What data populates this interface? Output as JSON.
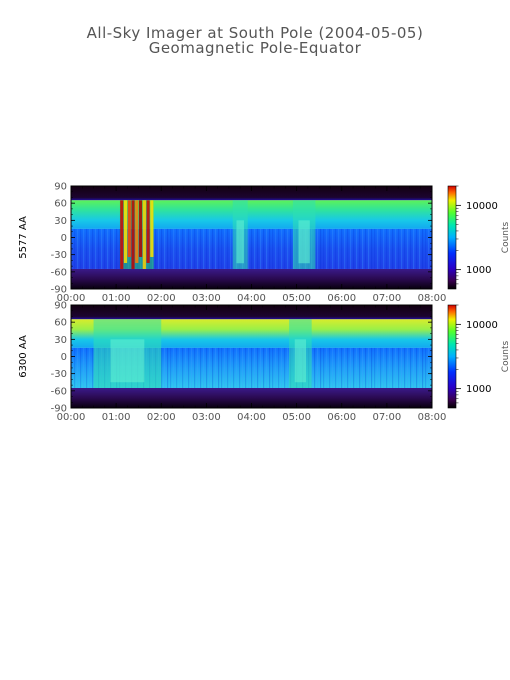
{
  "figure": {
    "title": "All-Sky Imager at South Pole (2004-05-05)",
    "subtitle": "Geomagnetic Pole-Equator"
  },
  "chart_data": [
    {
      "type": "heatmap",
      "ylabel": "5577 AA",
      "x_tick_labels": [
        "00:00",
        "01:00",
        "02:00",
        "03:00",
        "04:00",
        "05:00",
        "06:00",
        "07:00",
        "08:00"
      ],
      "xlim": [
        "00:00",
        "08:00"
      ],
      "y_ticks": [
        90,
        60,
        30,
        0,
        -30,
        -60,
        -90
      ],
      "ylim": [
        -90,
        90
      ],
      "colorbar": {
        "title": "Counts",
        "tick_labels": [
          "10000",
          "1000"
        ],
        "tick_values": [
          10000,
          1000
        ],
        "scale": "log",
        "range": [
          500,
          20000
        ]
      },
      "bands_deg": {
        "top_dark": [
          65,
          90
        ],
        "upper_green": [
          15,
          65
        ],
        "lower_blue": [
          -55,
          15
        ],
        "bottom_purple": [
          -90,
          -55
        ]
      },
      "intensity_events": [
        {
          "start": "01:05",
          "end": "01:50",
          "peak_counts": 20000
        },
        {
          "start": "03:35",
          "end": "03:55",
          "peak_counts": 6000
        },
        {
          "start": "04:55",
          "end": "05:25",
          "peak_counts": 5000
        }
      ]
    },
    {
      "type": "heatmap",
      "ylabel": "6300 AA",
      "x_tick_labels": [
        "00:00",
        "01:00",
        "02:00",
        "03:00",
        "04:00",
        "05:00",
        "06:00",
        "07:00",
        "08:00"
      ],
      "xlim": [
        "00:00",
        "08:00"
      ],
      "y_ticks": [
        90,
        60,
        30,
        0,
        -30,
        -60,
        -90
      ],
      "ylim": [
        -90,
        90
      ],
      "colorbar": {
        "title": "Counts",
        "tick_labels": [
          "10000",
          "1000"
        ],
        "tick_values": [
          10000,
          1000
        ],
        "scale": "log",
        "range": [
          500,
          20000
        ]
      },
      "bands_deg": {
        "top_dark": [
          65,
          90
        ],
        "upper_green": [
          15,
          65
        ],
        "lower_blue": [
          -55,
          15
        ],
        "bottom_purple": [
          -90,
          -55
        ]
      },
      "intensity_events": [
        {
          "start": "00:30",
          "end": "02:00",
          "peak_counts": 9000
        },
        {
          "start": "04:50",
          "end": "05:20",
          "peak_counts": 5000
        }
      ]
    }
  ]
}
